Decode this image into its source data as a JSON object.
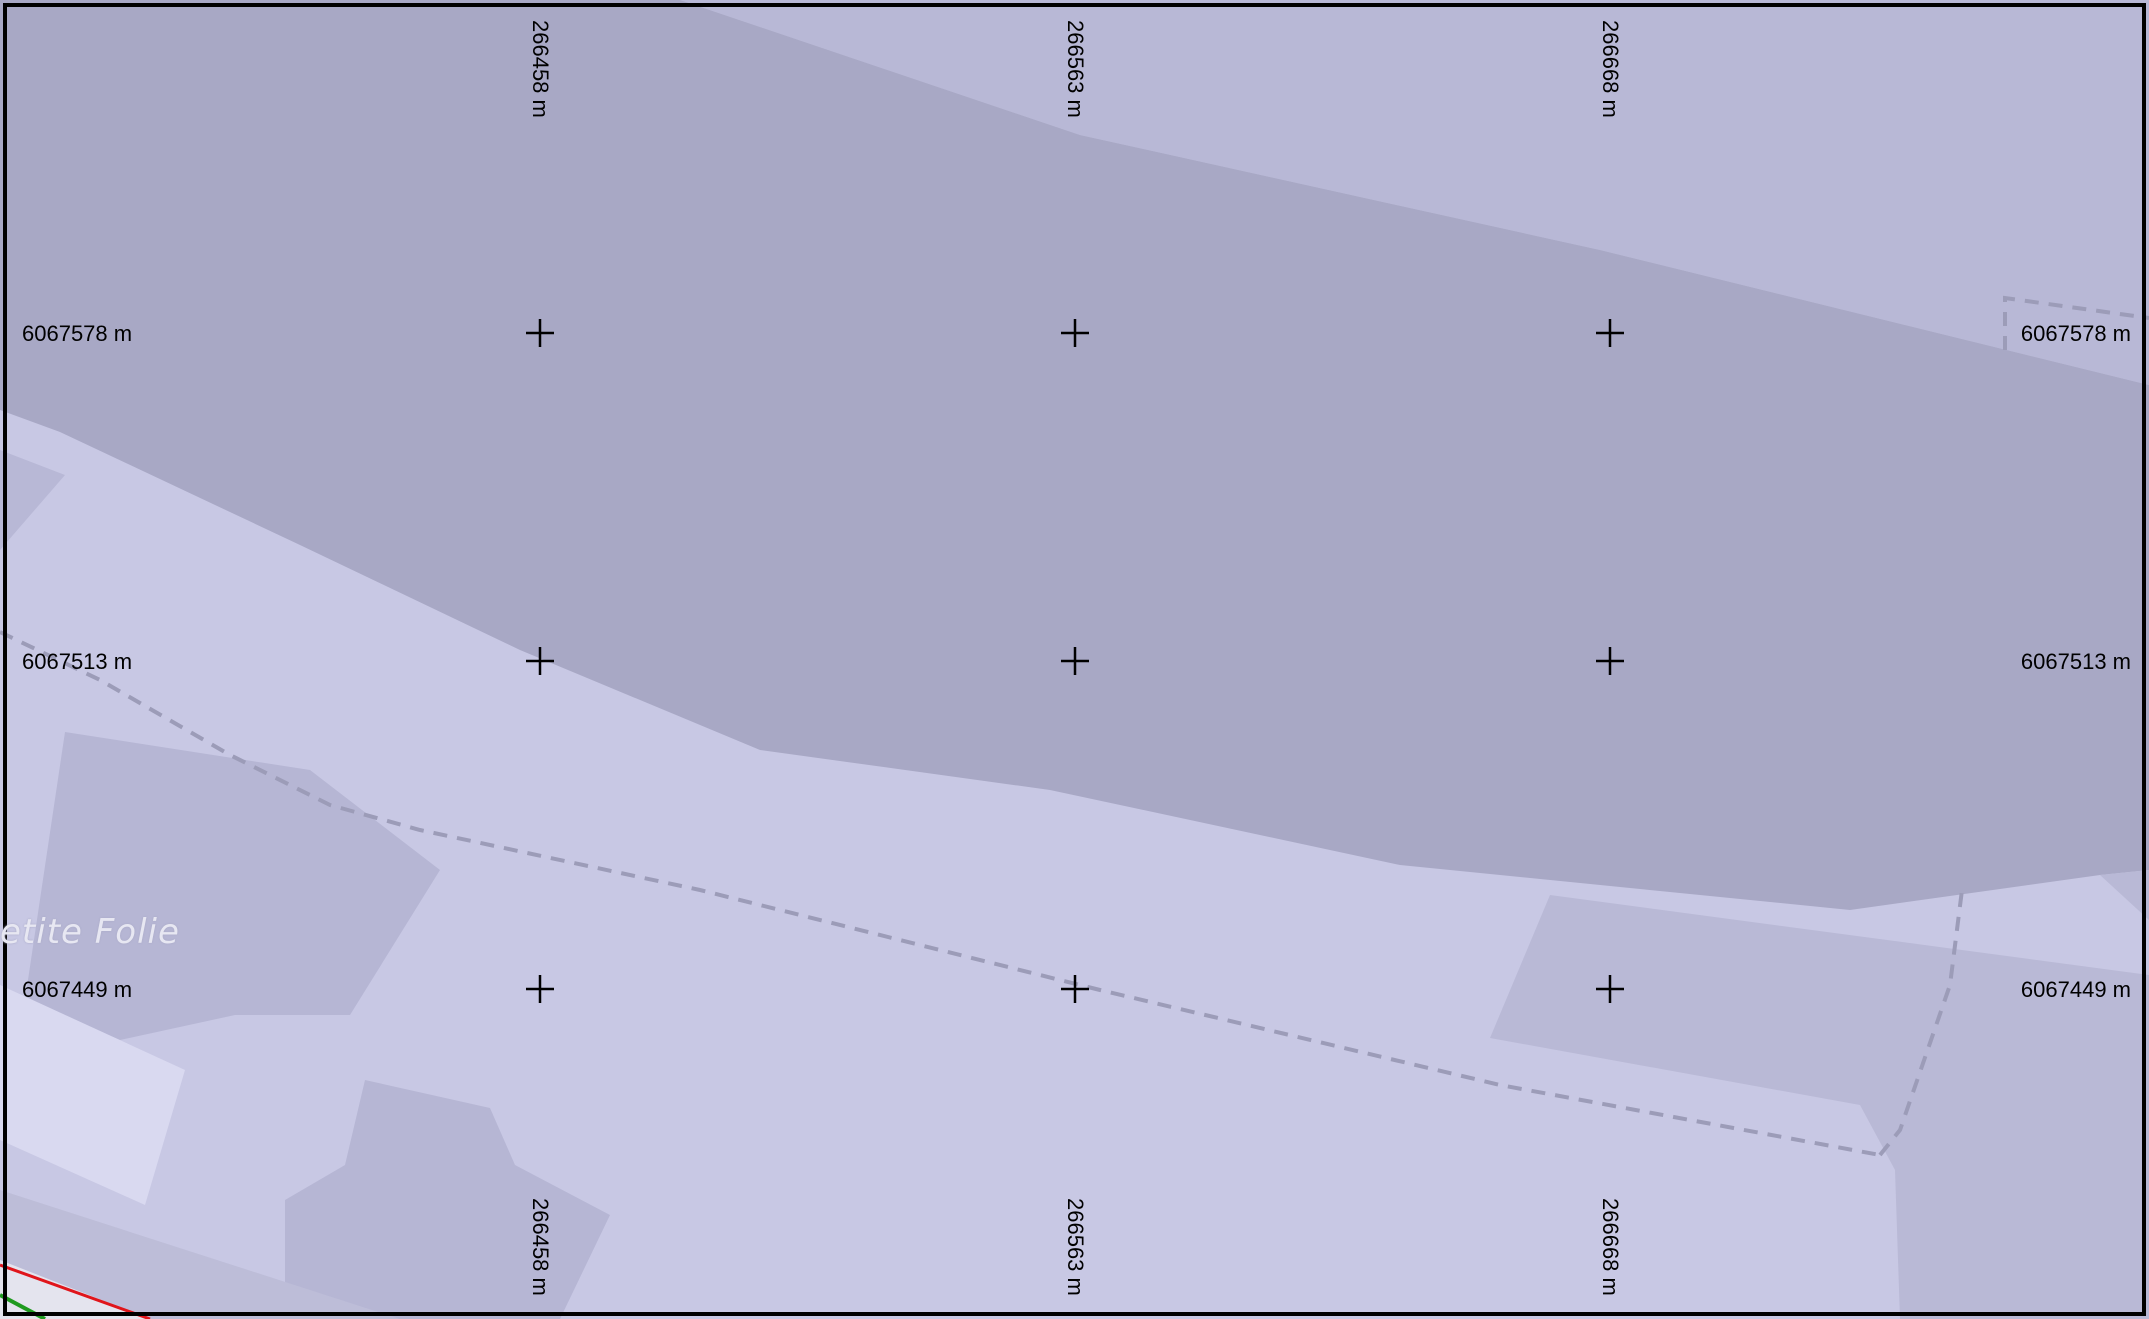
{
  "map": {
    "place_label": "etite Folie",
    "colors": {
      "water": "#a8a8c5",
      "land": "#c8c8e4",
      "park": "#b9b9d6",
      "light_area": "#d9d9f0",
      "path": "#9c9cb8",
      "grid_cross": "#000000",
      "frame": "#000000",
      "road_red": "#e0151b",
      "road_green": "#1f9a1f"
    }
  },
  "grid": {
    "eastings": [
      "266458 m",
      "266563 m",
      "266668 m"
    ],
    "northings": [
      "6067578 m",
      "6067513 m",
      "6067449 m"
    ]
  }
}
